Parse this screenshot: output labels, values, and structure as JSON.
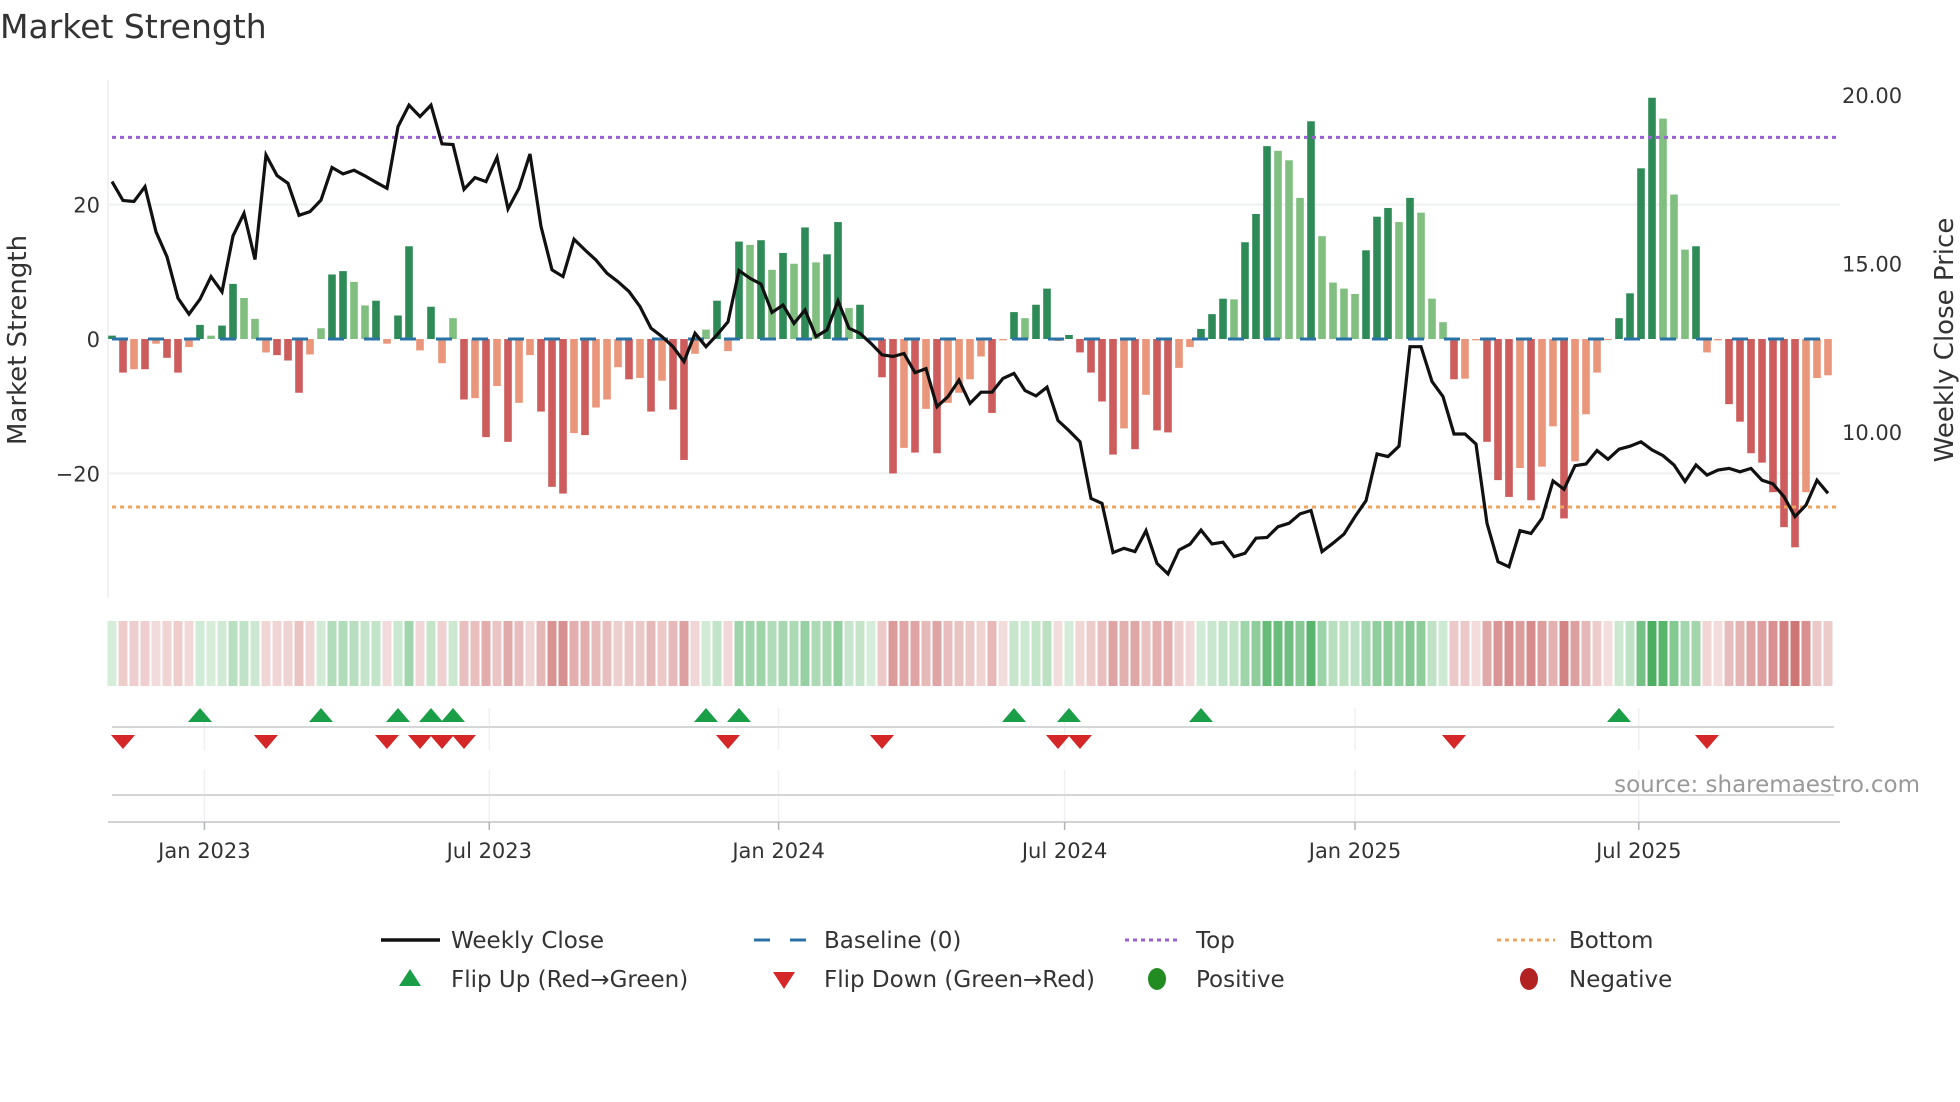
{
  "chart_data": {
    "type": "bar",
    "title": "Market Strength",
    "ylabel": "Market Strength",
    "y2label": "Weekly Close Price",
    "ylim": [
      -38.5,
      38.5
    ],
    "y2lim": [
      5.07,
      20.45
    ],
    "yticks": [
      {
        "value": 20,
        "label": "20"
      },
      {
        "value": 0,
        "label": "0"
      },
      {
        "value": -20,
        "label": "−20"
      }
    ],
    "y2ticks": [
      {
        "value": 20,
        "label": "20.00"
      },
      {
        "value": 15,
        "label": "15.00"
      },
      {
        "value": 10,
        "label": "10.00"
      }
    ],
    "xticks": [
      {
        "week": 9.4,
        "label": "Jan 2023"
      },
      {
        "week": 35.3,
        "label": "Jul 2023"
      },
      {
        "week": 61.6,
        "label": "Jan 2024"
      },
      {
        "week": 87.6,
        "label": "Jul 2024"
      },
      {
        "week": 114,
        "label": "Jan 2025"
      },
      {
        "week": 139.8,
        "label": "Jul 2025"
      }
    ],
    "top_level": 30,
    "bottom_level": -25,
    "baseline": 0,
    "strength": [
      0.5,
      -5,
      -4.5,
      -4.5,
      -0.7,
      -2.8,
      -5,
      -1.2,
      2.1,
      0.5,
      2,
      8.2,
      6.1,
      3,
      -2,
      -2.4,
      -3.2,
      -8,
      -2.3,
      1.6,
      9.6,
      10.1,
      8.5,
      5,
      5.7,
      -0.7,
      3.5,
      13.8,
      -1.7,
      4.8,
      -3.6,
      3.1,
      -9,
      -8.8,
      -14.6,
      -7,
      -15.3,
      -9.5,
      -2.4,
      -10.8,
      -22,
      -23,
      -14,
      -14.3,
      -10.2,
      -9,
      -4.2,
      -6,
      -5.8,
      -10.8,
      -6.2,
      -10.5,
      -18,
      -2.2,
      1.4,
      5.7,
      -1.8,
      14.5,
      14,
      14.7,
      10.3,
      12.8,
      11.2,
      16.6,
      11.4,
      12.6,
      17.4,
      4.6,
      5.1,
      0.2,
      -5.7,
      -20,
      -16.2,
      -16.9,
      -10.4,
      -17,
      -9.5,
      -8,
      -6,
      -2.6,
      -11,
      -0.2,
      4,
      3.1,
      5.1,
      7.5,
      -0.3,
      0.6,
      -2,
      -5,
      -9.3,
      -17.2,
      -13.3,
      -16.4,
      -8.3,
      -13.6,
      -13.9,
      -4.3,
      -1.2,
      1.5,
      3.7,
      6,
      5.9,
      14.4,
      18.6,
      28.7,
      28,
      26.6,
      21,
      32.4,
      15.3,
      8.4,
      7.5,
      6.7,
      13.2,
      18.2,
      19.5,
      17.4,
      21,
      18.8,
      6,
      2.5,
      -6,
      -5.9,
      -0.2,
      -15.3,
      -21,
      -23.5,
      -19.2,
      -24,
      -19,
      -13,
      -26.7,
      -18.2,
      -11.2,
      -5,
      -0.1,
      3.1,
      6.8,
      25.4,
      35.9,
      32.8,
      21.5,
      13.3,
      13.8,
      -2,
      -0.2,
      -9.7,
      -12.3,
      -17,
      -18.4,
      -22.8,
      -28,
      -31,
      -22.8,
      -5.8,
      -5.4
    ],
    "weekly_close": [
      17.43,
      16.87,
      16.84,
      17.28,
      15.94,
      15.2,
      13.97,
      13.5,
      13.94,
      14.61,
      14.16,
      15.82,
      16.49,
      15.12,
      18.22,
      17.61,
      17.38,
      16.43,
      16.54,
      16.88,
      17.85,
      17.66,
      17.77,
      17.6,
      17.41,
      17.23,
      19.06,
      19.7,
      19.36,
      19.7,
      18.55,
      18.53,
      17.2,
      17.55,
      17.43,
      18.15,
      16.62,
      17.23,
      18.25,
      16.1,
      14.81,
      14.61,
      15.72,
      15.4,
      15.1,
      14.71,
      14.46,
      14.17,
      13.72,
      13.08,
      12.83,
      12.53,
      12.09,
      12.93,
      12.53,
      12.88,
      13.27,
      14.79,
      14.56,
      14.39,
      13.55,
      13.77,
      13.22,
      13.62,
      12.83,
      13.03,
      13.89,
      13.08,
      12.93,
      12.63,
      12.29,
      12.24,
      12.33,
      11.76,
      11.88,
      10.75,
      11.05,
      11.54,
      10.85,
      11.18,
      11.18,
      11.59,
      11.74,
      11.23,
      11.07,
      11.33,
      10.34,
      10.04,
      9.71,
      8.03,
      7.88,
      6.42,
      6.55,
      6.45,
      7.07,
      6.1,
      5.79,
      6.5,
      6.67,
      7.09,
      6.68,
      6.73,
      6.3,
      6.4,
      6.85,
      6.87,
      7.19,
      7.29,
      7.57,
      7.67,
      6.45,
      6.7,
      6.97,
      7.49,
      7.96,
      9.35,
      9.27,
      9.58,
      12.53,
      12.53,
      11.5,
      11.05,
      9.94,
      9.94,
      9.64,
      7.29,
      6.15,
      6.0,
      7.07,
      6.99,
      7.44,
      8.55,
      8.3,
      9.0,
      9.05,
      9.45,
      9.19,
      9.49,
      9.58,
      9.71,
      9.47,
      9.3,
      9.02,
      8.53,
      9.02,
      8.72,
      8.87,
      8.92,
      8.82,
      8.92,
      8.57,
      8.46,
      8.08,
      7.49,
      7.83,
      8.57,
      8.18
    ],
    "flip_up_weeks": [
      9,
      20,
      27,
      30,
      32,
      55,
      58,
      83,
      88,
      100,
      138
    ],
    "flip_down_weeks": [
      2,
      15,
      26,
      29,
      31,
      33,
      57,
      71,
      87,
      89,
      123,
      146
    ],
    "legend": {
      "placement": "bottom",
      "weekly_close": "Weekly Close",
      "baseline": "Baseline (0)",
      "top": "Top",
      "bottom": "Bottom",
      "flip_up": "Flip Up (Red→Green)",
      "flip_down": "Flip Down (Green→Red)",
      "positive": "Positive",
      "negative": "Negative"
    },
    "source": "source: sharemaestro.com",
    "colors": {
      "pos_strong": "#2e8b57",
      "pos_weak": "#80bf80",
      "neg_strong": "#cd5c5c",
      "neg_weak": "#e9967a",
      "price": "#111111",
      "baseline": "#2b73a6",
      "top": "#9b5fd6",
      "bottom": "#f0a35e",
      "flip_up": "#1a9e48",
      "flip_down": "#d62728",
      "positive": "#228b22",
      "negative": "#b22222"
    }
  }
}
